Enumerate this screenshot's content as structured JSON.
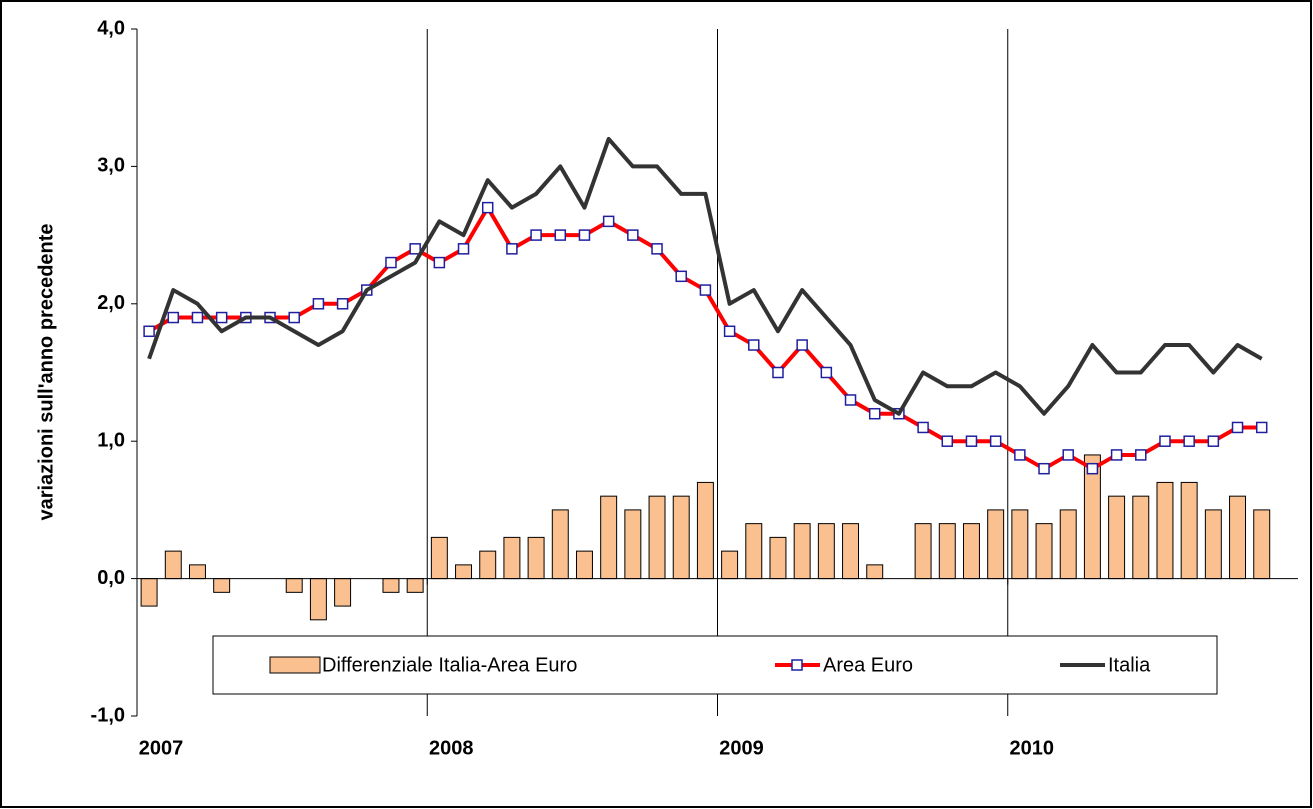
{
  "chart_data": {
    "type": "bar_line",
    "ylabel": "variazioni sull'anno precedente",
    "categories": [
      null,
      null,
      null,
      null,
      null,
      null,
      null,
      null,
      null,
      null,
      null,
      null,
      null,
      null,
      null,
      null,
      null,
      null,
      null,
      null,
      null,
      null,
      null,
      null,
      null,
      null,
      null,
      null,
      null,
      null,
      null,
      null,
      null,
      null,
      null,
      null,
      null,
      null,
      null,
      null,
      null,
      null,
      null,
      null,
      null,
      null,
      null,
      null
    ],
    "xticks": [
      {
        "value": 0,
        "label": "2007"
      },
      {
        "value": 12,
        "label": "2008"
      },
      {
        "value": 24,
        "label": "2009"
      },
      {
        "value": 36,
        "label": "2010"
      }
    ],
    "ylim": [
      -1,
      4
    ],
    "yticks": [
      {
        "value": -1,
        "label": "-1,0"
      },
      {
        "value": 0,
        "label": "0,0"
      },
      {
        "value": 1,
        "label": "1,0"
      },
      {
        "value": 2,
        "label": "2,0"
      },
      {
        "value": 3,
        "label": "3,0"
      },
      {
        "value": 4,
        "label": "4,0"
      }
    ],
    "grid": true,
    "series": [
      {
        "name": "Differenziale Italia-Area Euro",
        "kind": "bar",
        "color": "#fac090",
        "values": [
          -0.2,
          0.2,
          0.1,
          -0.1,
          0,
          0,
          -0.1,
          -0.3,
          -0.2,
          0,
          -0.1,
          -0.1,
          0.3,
          0.1,
          0.2,
          0.3,
          0.3,
          0.5,
          0.2,
          0.6,
          0.5,
          0.6,
          0.6,
          0.7,
          0.2,
          0.4,
          0.3,
          0.4,
          0.4,
          0.4,
          0.1,
          0,
          0.4,
          0.4,
          0.4,
          0.5,
          0.5,
          0.4,
          0.5,
          0.9,
          0.6,
          0.6,
          0.7,
          0.7,
          0.5,
          0.6,
          0.5,
          null
        ]
      },
      {
        "name": "Area Euro",
        "kind": "line",
        "color": "#ff0000",
        "marker_color": "#1f1f9f",
        "values": [
          1.8,
          1.9,
          1.9,
          1.9,
          1.9,
          1.9,
          1.9,
          2.0,
          2.0,
          2.1,
          2.3,
          2.4,
          2.3,
          2.4,
          2.7,
          2.4,
          2.5,
          2.5,
          2.5,
          2.6,
          2.5,
          2.4,
          2.2,
          2.1,
          1.8,
          1.7,
          1.5,
          1.7,
          1.5,
          1.3,
          1.2,
          1.2,
          1.1,
          1.0,
          1.0,
          1.0,
          0.9,
          0.8,
          0.9,
          0.8,
          0.9,
          0.9,
          1.0,
          1.0,
          1.0,
          1.1,
          1.1,
          null
        ]
      },
      {
        "name": "Italia",
        "kind": "line",
        "color": "#333333",
        "values": [
          1.6,
          2.1,
          2.0,
          1.8,
          1.9,
          1.9,
          1.8,
          1.7,
          1.8,
          2.1,
          2.2,
          2.3,
          2.6,
          2.5,
          2.9,
          2.7,
          2.8,
          3.0,
          2.7,
          3.2,
          3.0,
          3.0,
          2.8,
          2.8,
          2.0,
          2.1,
          1.8,
          2.1,
          1.9,
          1.7,
          1.3,
          1.2,
          1.5,
          1.4,
          1.4,
          1.5,
          1.4,
          1.2,
          1.4,
          1.7,
          1.5,
          1.5,
          1.7,
          1.7,
          1.5,
          1.7,
          1.6,
          null
        ]
      }
    ]
  }
}
